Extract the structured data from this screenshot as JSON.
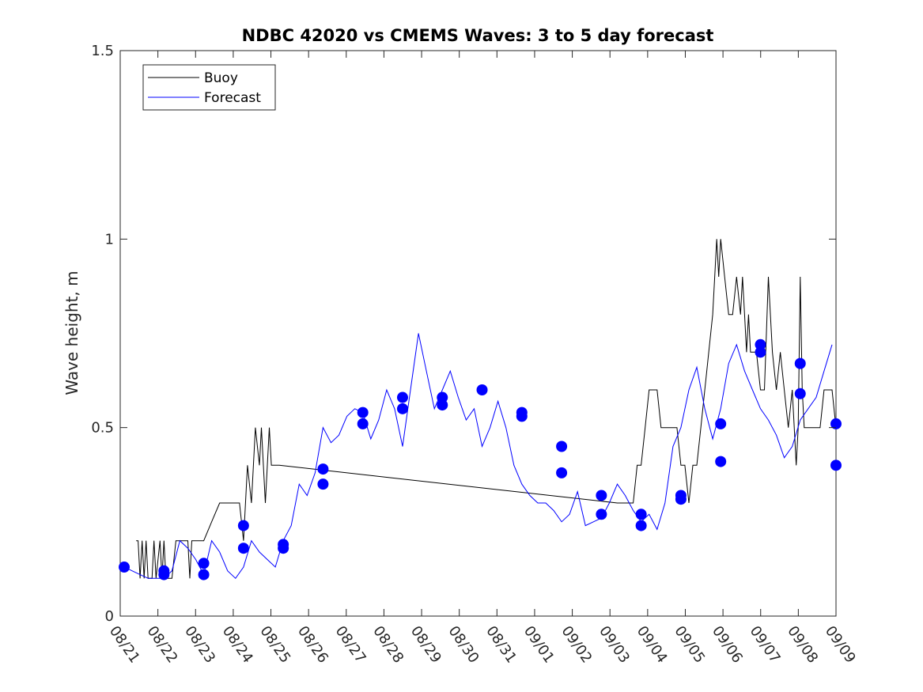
{
  "chart_data": {
    "type": "line",
    "title": "NDBC 42020 vs CMEMS Waves: 3 to 5 day forecast",
    "xlabel": "",
    "ylabel": "Wave height, m",
    "xlim": [
      0,
      18
    ],
    "ylim": [
      0,
      1.5
    ],
    "yticks": [
      0,
      0.5,
      1,
      1.5
    ],
    "ytick_labels": [
      "0",
      "0.5",
      "1",
      "1.5"
    ],
    "xtick_labels": [
      "08/21",
      "08/22",
      "08/23",
      "08/24",
      "08/25",
      "08/26",
      "08/27",
      "08/28",
      "08/29",
      "08/30",
      "08/31",
      "09/01",
      "09/02",
      "09/03",
      "09/04",
      "09/05",
      "09/06",
      "09/07",
      "09/08",
      "09/09"
    ],
    "legend": {
      "position": "top-left",
      "entries": [
        {
          "label": "Buoy",
          "color": "#000000"
        },
        {
          "label": "Forecast",
          "color": "#0000ff"
        }
      ]
    },
    "colors": {
      "buoy": "#000000",
      "forecast": "#0000ff",
      "axis": "#262626"
    },
    "series": [
      {
        "name": "Buoy",
        "color": "#000000",
        "x": [
          0.4,
          0.45,
          0.5,
          0.55,
          0.6,
          0.65,
          0.7,
          0.75,
          0.8,
          0.85,
          0.9,
          1.0,
          1.05,
          1.1,
          1.15,
          1.2,
          1.25,
          1.3,
          1.4,
          1.5,
          1.6,
          1.7,
          1.75,
          1.8,
          1.9,
          2.0,
          2.05,
          2.1,
          2.3,
          2.5,
          2.7,
          2.9,
          3.0,
          3.1,
          3.2,
          3.3,
          3.4,
          3.5,
          3.55,
          3.6,
          3.65,
          3.7,
          3.75,
          3.8,
          3.85,
          3.9,
          3.95,
          4.0,
          12.5,
          12.6,
          12.7,
          12.8,
          12.9,
          13.0,
          13.1,
          13.2,
          13.3,
          13.4,
          13.5,
          13.6,
          13.7,
          13.8,
          13.9,
          14.0,
          14.1,
          14.2,
          14.3,
          14.4,
          14.5,
          14.6,
          14.7,
          14.8,
          14.9,
          15.0,
          15.05,
          15.1,
          15.2,
          15.3,
          15.4,
          15.5,
          15.6,
          15.65,
          15.7,
          15.75,
          15.8,
          15.85,
          15.9,
          16.0,
          16.1,
          16.2,
          16.3,
          16.4,
          16.5,
          16.6,
          16.7,
          16.8,
          16.9,
          17.0,
          17.05,
          17.1,
          17.15,
          17.2,
          17.3,
          17.4,
          17.5,
          17.6,
          17.7,
          17.8,
          17.9,
          18.0
        ],
        "values": [
          0.2,
          0.2,
          0.1,
          0.2,
          0.1,
          0.2,
          0.1,
          0.1,
          0.1,
          0.2,
          0.1,
          0.2,
          0.1,
          0.2,
          0.1,
          0.1,
          0.1,
          0.1,
          0.2,
          0.2,
          0.2,
          0.2,
          0.1,
          0.2,
          0.2,
          0.2,
          0.2,
          0.2,
          0.25,
          0.3,
          0.3,
          0.3,
          0.3,
          0.2,
          0.4,
          0.3,
          0.5,
          0.4,
          0.5,
          0.4,
          0.3,
          0.4,
          0.5,
          0.4,
          0.4,
          0.4,
          0.4,
          0.4,
          0.3,
          0.3,
          0.3,
          0.3,
          0.3,
          0.4,
          0.4,
          0.5,
          0.6,
          0.6,
          0.6,
          0.5,
          0.5,
          0.5,
          0.5,
          0.5,
          0.4,
          0.4,
          0.3,
          0.4,
          0.4,
          0.5,
          0.6,
          0.7,
          0.8,
          1.0,
          0.9,
          1.0,
          0.9,
          0.8,
          0.8,
          0.9,
          0.8,
          0.9,
          0.8,
          0.7,
          0.8,
          0.7,
          0.7,
          0.7,
          0.6,
          0.6,
          0.9,
          0.7,
          0.6,
          0.7,
          0.6,
          0.5,
          0.6,
          0.4,
          0.5,
          0.9,
          0.6,
          0.5,
          0.5,
          0.5,
          0.5,
          0.5,
          0.6,
          0.6,
          0.6,
          0.5
        ],
        "markers": []
      },
      {
        "name": "Forecast",
        "color": "#0000ff",
        "x": [
          0.1,
          0.3,
          0.5,
          0.7,
          0.9,
          1.1,
          1.3,
          1.5,
          1.7,
          1.9,
          2.1,
          2.3,
          2.5,
          2.7,
          2.9,
          3.1,
          3.3,
          3.5,
          3.7,
          3.9,
          4.1,
          4.3,
          4.5,
          4.7,
          4.9,
          5.1,
          5.3,
          5.5,
          5.7,
          5.9,
          6.1,
          6.3,
          6.5,
          6.7,
          6.9,
          7.1,
          7.3,
          7.5,
          7.7,
          7.9,
          8.1,
          8.3,
          8.5,
          8.7,
          8.9,
          9.1,
          9.3,
          9.5,
          9.7,
          9.9,
          10.1,
          10.3,
          10.5,
          10.7,
          10.9,
          11.1,
          11.3,
          11.5,
          11.7,
          11.9,
          12.1,
          12.3,
          12.5,
          12.7,
          12.9,
          13.1,
          13.3,
          13.5,
          13.7,
          13.9,
          14.1,
          14.3,
          14.5,
          14.7,
          14.9,
          15.1,
          15.3,
          15.5,
          15.7,
          15.9,
          16.1,
          16.3,
          16.5,
          16.7,
          16.9,
          17.1,
          17.3,
          17.5,
          17.7,
          17.9
        ],
        "values": [
          0.13,
          0.12,
          0.11,
          0.1,
          0.1,
          0.1,
          0.12,
          0.2,
          0.18,
          0.15,
          0.11,
          0.2,
          0.17,
          0.12,
          0.1,
          0.13,
          0.2,
          0.17,
          0.15,
          0.13,
          0.2,
          0.24,
          0.35,
          0.32,
          0.38,
          0.5,
          0.46,
          0.48,
          0.53,
          0.55,
          0.54,
          0.47,
          0.52,
          0.6,
          0.55,
          0.45,
          0.6,
          0.75,
          0.65,
          0.55,
          0.6,
          0.65,
          0.58,
          0.52,
          0.55,
          0.45,
          0.5,
          0.57,
          0.5,
          0.4,
          0.35,
          0.32,
          0.3,
          0.3,
          0.28,
          0.25,
          0.27,
          0.33,
          0.24,
          0.25,
          0.26,
          0.3,
          0.35,
          0.32,
          0.28,
          0.25,
          0.27,
          0.23,
          0.3,
          0.45,
          0.5,
          0.6,
          0.66,
          0.55,
          0.47,
          0.55,
          0.67,
          0.72,
          0.65,
          0.6,
          0.55,
          0.52,
          0.48,
          0.42,
          0.45,
          0.52,
          0.55,
          0.58,
          0.65,
          0.72
        ],
        "markers": [
          {
            "x": 0.1,
            "y": 0.13
          },
          {
            "x": 1.1,
            "y": 0.11
          },
          {
            "x": 1.1,
            "y": 0.12
          },
          {
            "x": 2.1,
            "y": 0.11
          },
          {
            "x": 2.1,
            "y": 0.14
          },
          {
            "x": 3.1,
            "y": 0.18
          },
          {
            "x": 3.1,
            "y": 0.24
          },
          {
            "x": 4.1,
            "y": 0.18
          },
          {
            "x": 4.1,
            "y": 0.19
          },
          {
            "x": 5.1,
            "y": 0.35
          },
          {
            "x": 5.1,
            "y": 0.39
          },
          {
            "x": 6.1,
            "y": 0.51
          },
          {
            "x": 6.1,
            "y": 0.54
          },
          {
            "x": 7.1,
            "y": 0.55
          },
          {
            "x": 7.1,
            "y": 0.58
          },
          {
            "x": 8.1,
            "y": 0.56
          },
          {
            "x": 8.1,
            "y": 0.58
          },
          {
            "x": 9.1,
            "y": 0.6
          },
          {
            "x": 10.1,
            "y": 0.53
          },
          {
            "x": 10.1,
            "y": 0.54
          },
          {
            "x": 11.1,
            "y": 0.38
          },
          {
            "x": 11.1,
            "y": 0.45
          },
          {
            "x": 12.1,
            "y": 0.27
          },
          {
            "x": 12.1,
            "y": 0.32
          },
          {
            "x": 13.1,
            "y": 0.24
          },
          {
            "x": 13.1,
            "y": 0.27
          },
          {
            "x": 14.1,
            "y": 0.31
          },
          {
            "x": 14.1,
            "y": 0.32
          },
          {
            "x": 15.1,
            "y": 0.41
          },
          {
            "x": 15.1,
            "y": 0.51
          },
          {
            "x": 16.1,
            "y": 0.7
          },
          {
            "x": 16.1,
            "y": 0.72
          },
          {
            "x": 17.1,
            "y": 0.59
          },
          {
            "x": 17.1,
            "y": 0.67
          },
          {
            "x": 18.1,
            "y": 0.4
          },
          {
            "x": 18.1,
            "y": 0.51
          }
        ]
      }
    ]
  }
}
